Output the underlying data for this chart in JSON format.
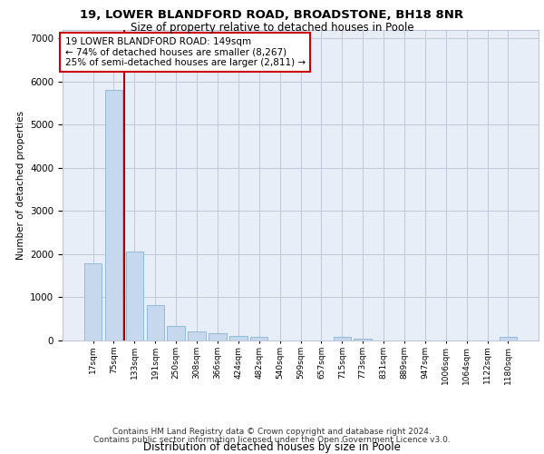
{
  "title1": "19, LOWER BLANDFORD ROAD, BROADSTONE, BH18 8NR",
  "title2": "Size of property relative to detached houses in Poole",
  "xlabel": "Distribution of detached houses by size in Poole",
  "ylabel": "Number of detached properties",
  "bar_color": "#c5d8ee",
  "bar_edge_color": "#7aaad0",
  "categories": [
    "17sqm",
    "75sqm",
    "133sqm",
    "191sqm",
    "250sqm",
    "308sqm",
    "366sqm",
    "424sqm",
    "482sqm",
    "540sqm",
    "599sqm",
    "657sqm",
    "715sqm",
    "773sqm",
    "831sqm",
    "889sqm",
    "947sqm",
    "1006sqm",
    "1064sqm",
    "1122sqm",
    "1180sqm"
  ],
  "values": [
    1780,
    5800,
    2060,
    830,
    340,
    200,
    170,
    105,
    80,
    0,
    0,
    0,
    80,
    50,
    0,
    0,
    0,
    0,
    0,
    0,
    80
  ],
  "ylim": [
    0,
    7200
  ],
  "yticks": [
    0,
    1000,
    2000,
    3000,
    4000,
    5000,
    6000,
    7000
  ],
  "annotation_line1": "19 LOWER BLANDFORD ROAD: 149sqm",
  "annotation_line2": "← 74% of detached houses are smaller (8,267)",
  "annotation_line3": "25% of semi-detached houses are larger (2,811) →",
  "vline_x": 1.5,
  "vline_color": "#aa0000",
  "box_facecolor": "#ffffff",
  "box_edgecolor": "#cc0000",
  "footer1": "Contains HM Land Registry data © Crown copyright and database right 2024.",
  "footer2": "Contains public sector information licensed under the Open Government Licence v3.0.",
  "bg_color": "#e8eef8",
  "grid_color": "#c0c8d8",
  "title1_fontsize": 9.5,
  "title2_fontsize": 8.5,
  "ann_fontsize": 7.5,
  "ylabel_fontsize": 7.5,
  "xlabel_fontsize": 8.5,
  "xtick_fontsize": 6.5,
  "ytick_fontsize": 7.5,
  "footer_fontsize": 6.5
}
